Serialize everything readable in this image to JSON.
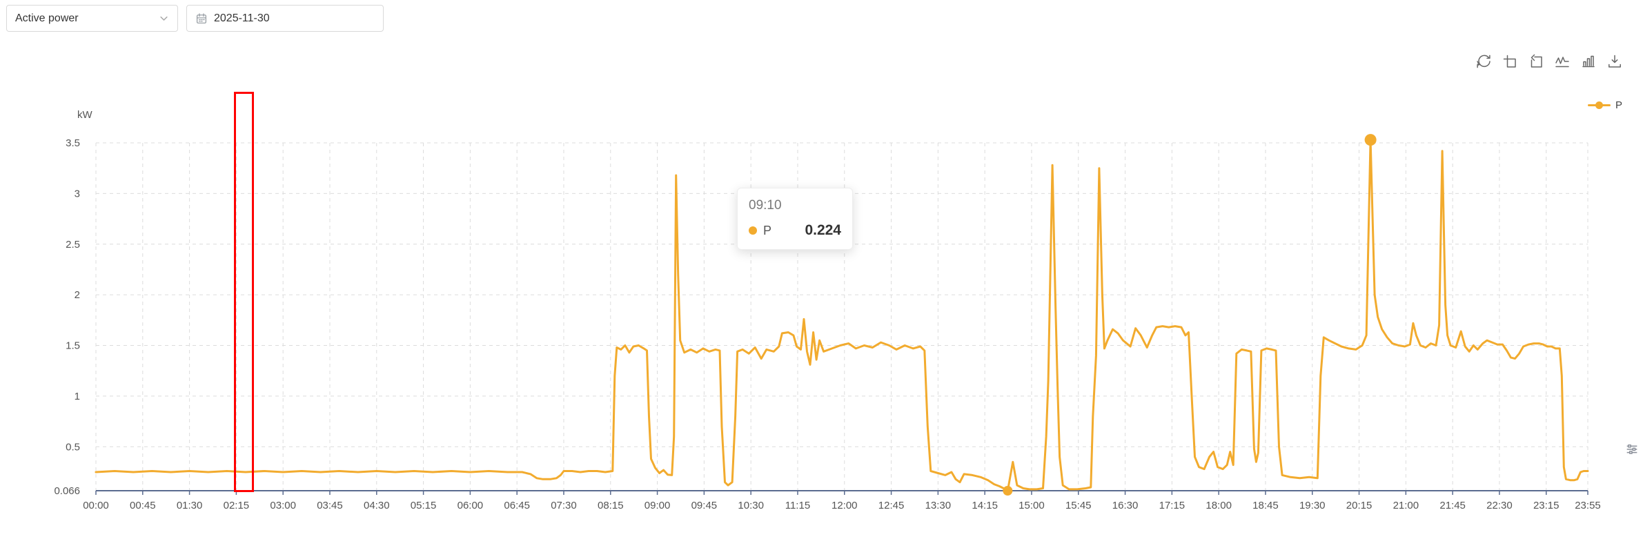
{
  "controls": {
    "metric_select": {
      "value": "Active power"
    },
    "date_picker": {
      "value": "2025-11-30"
    }
  },
  "toolbar": {
    "icons": [
      "refresh",
      "zoom-select",
      "restore",
      "line-chart-type",
      "bar-chart-type",
      "download"
    ]
  },
  "legend": {
    "label": "P"
  },
  "tooltip": {
    "time": "09:10",
    "series": "P",
    "value": "0.224"
  },
  "colors": {
    "series": "#F2AB2E",
    "axis": "#5A6B8F",
    "grid": "#DCDCDC",
    "tick_text": "#555555",
    "annotation": "#FF0000"
  },
  "chart_data": {
    "type": "line",
    "title": "",
    "xlabel": "",
    "ylabel": "kW",
    "unit": "kW",
    "series_name": "P",
    "line_color": "#F2AB2E",
    "grid": true,
    "legend_position": "top-right",
    "ylim": [
      0.066,
      3.5
    ],
    "x_max_minutes": 1435,
    "y_ticks": [
      "0.066",
      "0.5",
      "1",
      "1.5",
      "2",
      "2.5",
      "3",
      "3.5"
    ],
    "x_tick_minutes": [
      0,
      45,
      90,
      135,
      180,
      225,
      270,
      315,
      360,
      405,
      450,
      495,
      540,
      585,
      630,
      675,
      720,
      765,
      810,
      855,
      900,
      945,
      990,
      1035,
      1080,
      1125,
      1170,
      1215,
      1260,
      1305,
      1350,
      1395,
      1435
    ],
    "x_tick_labels": [
      "00:00",
      "00:45",
      "01:30",
      "02:15",
      "03:00",
      "03:45",
      "04:30",
      "05:15",
      "06:00",
      "06:45",
      "07:30",
      "08:15",
      "09:00",
      "09:45",
      "10:30",
      "11:15",
      "12:00",
      "12:45",
      "13:30",
      "14:15",
      "15:00",
      "15:45",
      "16:30",
      "17:15",
      "18:00",
      "18:45",
      "19:30",
      "20:15",
      "21:00",
      "21:45",
      "22:30",
      "23:15",
      "23:55"
    ],
    "hover_point": {
      "time": "09:10",
      "t": 550,
      "value": 0.224
    },
    "marked_points": [
      {
        "name": "min",
        "t": 877,
        "v": 0.066,
        "r": 7
      },
      {
        "name": "max",
        "t": 1226,
        "v": 3.53,
        "r": 8.5
      }
    ],
    "annotations": {
      "red_box": {
        "t_start": 133,
        "t_end": 152
      }
    },
    "points": [
      [
        0,
        0.25
      ],
      [
        18,
        0.26
      ],
      [
        36,
        0.25
      ],
      [
        54,
        0.26
      ],
      [
        72,
        0.25
      ],
      [
        90,
        0.26
      ],
      [
        108,
        0.25
      ],
      [
        126,
        0.26
      ],
      [
        144,
        0.25
      ],
      [
        162,
        0.26
      ],
      [
        180,
        0.25
      ],
      [
        198,
        0.26
      ],
      [
        216,
        0.25
      ],
      [
        234,
        0.26
      ],
      [
        252,
        0.25
      ],
      [
        270,
        0.26
      ],
      [
        288,
        0.25
      ],
      [
        306,
        0.26
      ],
      [
        324,
        0.25
      ],
      [
        342,
        0.26
      ],
      [
        360,
        0.25
      ],
      [
        378,
        0.26
      ],
      [
        396,
        0.25
      ],
      [
        410,
        0.25
      ],
      [
        418,
        0.23
      ],
      [
        424,
        0.19
      ],
      [
        430,
        0.18
      ],
      [
        437,
        0.18
      ],
      [
        443,
        0.19
      ],
      [
        447,
        0.22
      ],
      [
        450,
        0.26
      ],
      [
        458,
        0.26
      ],
      [
        466,
        0.25
      ],
      [
        474,
        0.26
      ],
      [
        482,
        0.26
      ],
      [
        490,
        0.25
      ],
      [
        497,
        0.26
      ],
      [
        499,
        1.2
      ],
      [
        501,
        1.48
      ],
      [
        505,
        1.46
      ],
      [
        509,
        1.5
      ],
      [
        513,
        1.43
      ],
      [
        517,
        1.49
      ],
      [
        522,
        1.5
      ],
      [
        527,
        1.47
      ],
      [
        530,
        1.45
      ],
      [
        532,
        0.8
      ],
      [
        534,
        0.38
      ],
      [
        538,
        0.29
      ],
      [
        542,
        0.24
      ],
      [
        546,
        0.27
      ],
      [
        550,
        0.224
      ],
      [
        554,
        0.22
      ],
      [
        556,
        0.6
      ],
      [
        558,
        3.18
      ],
      [
        560,
        2.2
      ],
      [
        562,
        1.55
      ],
      [
        566,
        1.43
      ],
      [
        572,
        1.46
      ],
      [
        578,
        1.43
      ],
      [
        584,
        1.47
      ],
      [
        590,
        1.44
      ],
      [
        596,
        1.46
      ],
      [
        600,
        1.45
      ],
      [
        602,
        0.7
      ],
      [
        605,
        0.15
      ],
      [
        608,
        0.12
      ],
      [
        612,
        0.15
      ],
      [
        615,
        0.8
      ],
      [
        617,
        1.44
      ],
      [
        622,
        1.46
      ],
      [
        628,
        1.42
      ],
      [
        634,
        1.48
      ],
      [
        640,
        1.37
      ],
      [
        645,
        1.46
      ],
      [
        652,
        1.44
      ],
      [
        657,
        1.49
      ],
      [
        660,
        1.62
      ],
      [
        666,
        1.63
      ],
      [
        671,
        1.6
      ],
      [
        674,
        1.49
      ],
      [
        678,
        1.46
      ],
      [
        681,
        1.76
      ],
      [
        684,
        1.44
      ],
      [
        687,
        1.31
      ],
      [
        690,
        1.63
      ],
      [
        693,
        1.36
      ],
      [
        696,
        1.55
      ],
      [
        700,
        1.44
      ],
      [
        708,
        1.47
      ],
      [
        716,
        1.5
      ],
      [
        724,
        1.52
      ],
      [
        731,
        1.47
      ],
      [
        739,
        1.5
      ],
      [
        747,
        1.48
      ],
      [
        755,
        1.53
      ],
      [
        763,
        1.5
      ],
      [
        770,
        1.46
      ],
      [
        778,
        1.5
      ],
      [
        786,
        1.47
      ],
      [
        793,
        1.49
      ],
      [
        797,
        1.45
      ],
      [
        800,
        0.7
      ],
      [
        803,
        0.26
      ],
      [
        810,
        0.24
      ],
      [
        817,
        0.22
      ],
      [
        823,
        0.25
      ],
      [
        827,
        0.18
      ],
      [
        831,
        0.15
      ],
      [
        835,
        0.23
      ],
      [
        843,
        0.22
      ],
      [
        851,
        0.2
      ],
      [
        858,
        0.17
      ],
      [
        864,
        0.13
      ],
      [
        869,
        0.11
      ],
      [
        873,
        0.09
      ],
      [
        877,
        0.066
      ],
      [
        882,
        0.35
      ],
      [
        886,
        0.12
      ],
      [
        892,
        0.09
      ],
      [
        898,
        0.08
      ],
      [
        905,
        0.08
      ],
      [
        911,
        0.09
      ],
      [
        914,
        0.6
      ],
      [
        916,
        1.15
      ],
      [
        920,
        3.28
      ],
      [
        923,
        1.9
      ],
      [
        925,
        1.1
      ],
      [
        927,
        0.4
      ],
      [
        930,
        0.12
      ],
      [
        936,
        0.08
      ],
      [
        944,
        0.08
      ],
      [
        952,
        0.09
      ],
      [
        957,
        0.1
      ],
      [
        959,
        0.8
      ],
      [
        962,
        1.4
      ],
      [
        965,
        3.25
      ],
      [
        968,
        2.0
      ],
      [
        970,
        1.47
      ],
      [
        973,
        1.55
      ],
      [
        978,
        1.66
      ],
      [
        983,
        1.62
      ],
      [
        988,
        1.55
      ],
      [
        995,
        1.49
      ],
      [
        1000,
        1.67
      ],
      [
        1005,
        1.6
      ],
      [
        1011,
        1.48
      ],
      [
        1016,
        1.6
      ],
      [
        1020,
        1.68
      ],
      [
        1026,
        1.69
      ],
      [
        1032,
        1.68
      ],
      [
        1038,
        1.69
      ],
      [
        1044,
        1.68
      ],
      [
        1048,
        1.6
      ],
      [
        1051,
        1.63
      ],
      [
        1054,
        1.0
      ],
      [
        1057,
        0.4
      ],
      [
        1061,
        0.3
      ],
      [
        1066,
        0.28
      ],
      [
        1071,
        0.4
      ],
      [
        1075,
        0.45
      ],
      [
        1079,
        0.3
      ],
      [
        1084,
        0.28
      ],
      [
        1088,
        0.32
      ],
      [
        1091,
        0.45
      ],
      [
        1094,
        0.32
      ],
      [
        1097,
        1.42
      ],
      [
        1102,
        1.46
      ],
      [
        1107,
        1.45
      ],
      [
        1111,
        1.44
      ],
      [
        1114,
        0.48
      ],
      [
        1116,
        0.35
      ],
      [
        1118,
        0.44
      ],
      [
        1121,
        1.45
      ],
      [
        1126,
        1.47
      ],
      [
        1131,
        1.46
      ],
      [
        1135,
        1.45
      ],
      [
        1138,
        0.5
      ],
      [
        1141,
        0.22
      ],
      [
        1149,
        0.2
      ],
      [
        1158,
        0.19
      ],
      [
        1167,
        0.2
      ],
      [
        1175,
        0.19
      ],
      [
        1178,
        1.2
      ],
      [
        1181,
        1.58
      ],
      [
        1186,
        1.55
      ],
      [
        1192,
        1.52
      ],
      [
        1198,
        1.49
      ],
      [
        1205,
        1.47
      ],
      [
        1212,
        1.46
      ],
      [
        1218,
        1.5
      ],
      [
        1222,
        1.6
      ],
      [
        1226,
        3.53
      ],
      [
        1230,
        2.0
      ],
      [
        1233,
        1.78
      ],
      [
        1237,
        1.66
      ],
      [
        1242,
        1.58
      ],
      [
        1247,
        1.52
      ],
      [
        1253,
        1.5
      ],
      [
        1259,
        1.49
      ],
      [
        1264,
        1.51
      ],
      [
        1267,
        1.72
      ],
      [
        1270,
        1.6
      ],
      [
        1274,
        1.5
      ],
      [
        1279,
        1.48
      ],
      [
        1284,
        1.52
      ],
      [
        1289,
        1.5
      ],
      [
        1292,
        1.7
      ],
      [
        1295,
        3.42
      ],
      [
        1298,
        1.9
      ],
      [
        1300,
        1.6
      ],
      [
        1303,
        1.5
      ],
      [
        1308,
        1.48
      ],
      [
        1313,
        1.64
      ],
      [
        1317,
        1.49
      ],
      [
        1321,
        1.44
      ],
      [
        1325,
        1.5
      ],
      [
        1329,
        1.46
      ],
      [
        1334,
        1.52
      ],
      [
        1338,
        1.55
      ],
      [
        1343,
        1.53
      ],
      [
        1348,
        1.51
      ],
      [
        1353,
        1.51
      ],
      [
        1357,
        1.45
      ],
      [
        1361,
        1.38
      ],
      [
        1365,
        1.37
      ],
      [
        1369,
        1.42
      ],
      [
        1373,
        1.49
      ],
      [
        1378,
        1.51
      ],
      [
        1383,
        1.52
      ],
      [
        1388,
        1.52
      ],
      [
        1392,
        1.51
      ],
      [
        1396,
        1.49
      ],
      [
        1400,
        1.49
      ],
      [
        1404,
        1.47
      ],
      [
        1408,
        1.47
      ],
      [
        1410,
        1.2
      ],
      [
        1412,
        0.3
      ],
      [
        1414,
        0.18
      ],
      [
        1418,
        0.17
      ],
      [
        1422,
        0.17
      ],
      [
        1425,
        0.18
      ],
      [
        1428,
        0.25
      ],
      [
        1431,
        0.26
      ],
      [
        1435,
        0.26
      ]
    ]
  }
}
